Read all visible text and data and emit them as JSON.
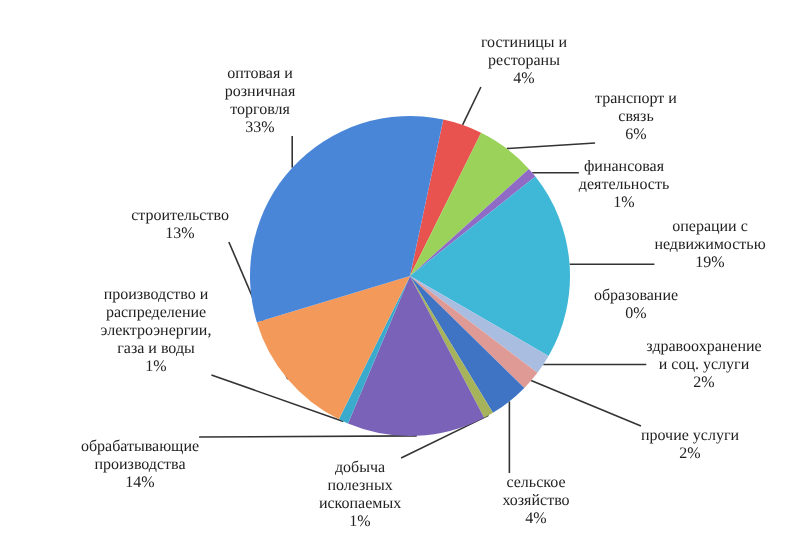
{
  "chart_data": {
    "type": "pie",
    "categories": [
      "гостиницы и рестораны",
      "транспорт и связь",
      "финансовая деятельность",
      "операции с недвижимостью",
      "образование",
      "здравоохранение и соц. услуги",
      "прочие услуги",
      "сельское хозяйство",
      "добыча полезных ископаемых",
      "обрабатывающие производства",
      "производство и распределение электроэнергии, газа и воды",
      "строительство",
      "оптовая и розничная торговля"
    ],
    "values": [
      4,
      6,
      1,
      19,
      0,
      2,
      2,
      4,
      1,
      14,
      1,
      13,
      33
    ],
    "value_labels": [
      "4%",
      "6%",
      "1%",
      "19%",
      "0%",
      "2%",
      "2%",
      "4%",
      "1%",
      "14%",
      "1%",
      "13%",
      "33%"
    ],
    "colors": [
      "#e8534f",
      "#9bd35a",
      "#8f6bc6",
      "#3fb8d8",
      "#1e6a7a",
      "#a8bde0",
      "#e09a95",
      "#3f74c4",
      "#a7b35a",
      "#7a62b8",
      "#3aabcc",
      "#f39a5a",
      "#4a86d8"
    ]
  }
}
